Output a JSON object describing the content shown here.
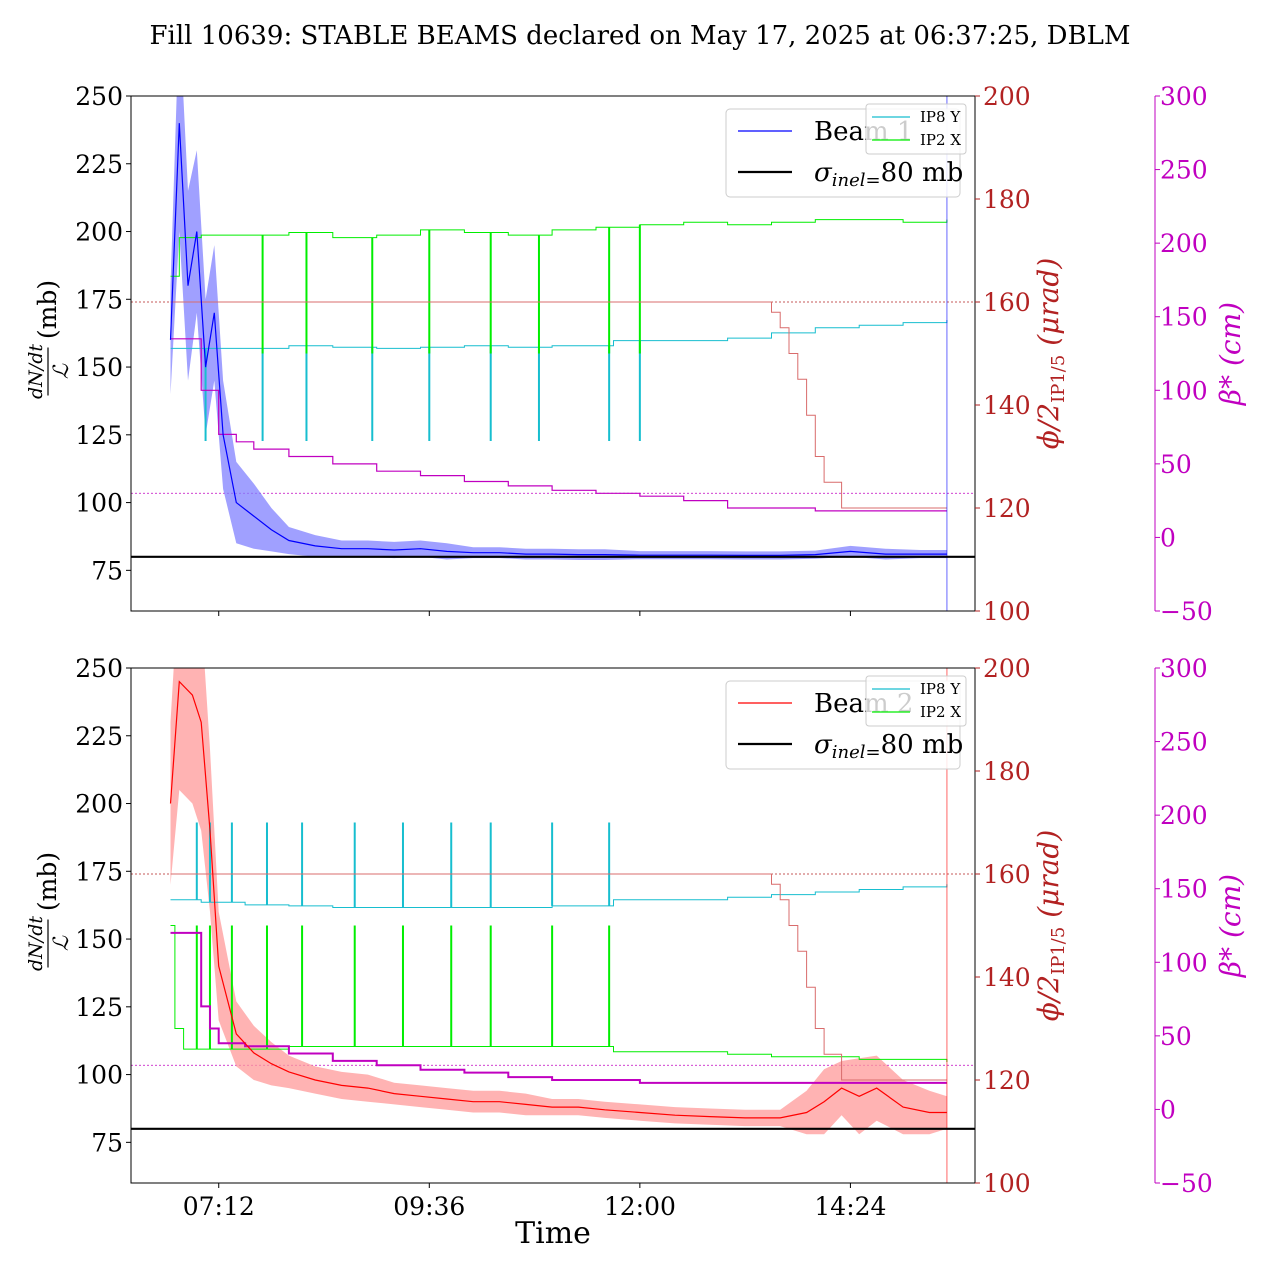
{
  "title": "Fill 10639: STABLE BEAMS declared on May 17, 2025 at 06:37:25, DBLM",
  "colors": {
    "beam1": "#0000ff",
    "beam1_band": "#8080ff",
    "beam2": "#ff0000",
    "beam2_band": "#ff9999",
    "ip8y": "#17becf",
    "ip2x": "#00ee00",
    "crossing": "#d96c6c",
    "crossing_axis": "#b22222",
    "beta": "#c000c0",
    "sigma": "#000000"
  },
  "chart_data": [
    {
      "panel": "top",
      "type": "line",
      "xlabel": "",
      "x_ticks": [
        "07:12",
        "09:36",
        "12:00",
        "14:24"
      ],
      "x_tick_hours": [
        7.2,
        9.6,
        12.0,
        14.4
      ],
      "xlim_hours": [
        6.2,
        15.82
      ],
      "y_left": {
        "label_num": "dN/dt",
        "label_den": "ℒ",
        "label_unit": "(mb)",
        "lim": [
          60,
          250
        ],
        "ticks": [
          75,
          100,
          125,
          150,
          175,
          200,
          225,
          250
        ]
      },
      "y_right1": {
        "label": "ϕ/2",
        "label_sub": "IP1/5",
        "label_unit": "(μrad)",
        "lim": [
          100,
          200
        ],
        "ticks": [
          100,
          120,
          140,
          160,
          180,
          200
        ]
      },
      "y_right2": {
        "label": "β*",
        "label_unit": "(cm)",
        "lim": [
          -50,
          300
        ],
        "ticks": [
          -50,
          0,
          50,
          100,
          150,
          200,
          250,
          300
        ]
      },
      "legend_main": [
        "Beam 1",
        "σinel=80 mb"
      ],
      "legend_main_placement": "top-right",
      "legend_ip": [
        "IP8 Y",
        "IP2 X"
      ],
      "legend_ip_placement": "top-right",
      "sigma_inel_mb": 80,
      "series": [
        {
          "name": "Beam 1",
          "axis": "left",
          "x": [
            6.65,
            6.75,
            6.85,
            6.95,
            7.05,
            7.15,
            7.25,
            7.4,
            7.6,
            7.8,
            8.0,
            8.3,
            8.6,
            8.9,
            9.2,
            9.5,
            9.8,
            10.1,
            10.4,
            10.7,
            11.0,
            11.3,
            11.6,
            12.0,
            12.4,
            12.8,
            13.2,
            13.6,
            14.0,
            14.4,
            14.8,
            15.2,
            15.5
          ],
          "values": [
            160,
            240,
            180,
            200,
            150,
            170,
            125,
            100,
            95,
            90,
            86,
            84,
            83,
            83,
            82.5,
            83,
            82,
            81.5,
            81.5,
            81,
            81,
            80.8,
            80.8,
            80.6,
            80.6,
            80.6,
            80.5,
            80.5,
            80.8,
            82,
            81,
            81,
            81
          ],
          "band_width": [
            20,
            40,
            35,
            30,
            25,
            25,
            20,
            15,
            12,
            8,
            5,
            4,
            3,
            3,
            3,
            3,
            3,
            2,
            2,
            2,
            2,
            2,
            2,
            1.5,
            1.5,
            1.5,
            1.5,
            1.5,
            1.5,
            2,
            2,
            1.5,
            1.5
          ]
        },
        {
          "name": "IP8 Y",
          "axis": "right1",
          "x": [
            6.65,
            7.5,
            8.0,
            8.5,
            9.0,
            9.5,
            10.0,
            10.5,
            11.0,
            11.5,
            11.7,
            12.5,
            13.0,
            13.5,
            14.0,
            14.5,
            15.0,
            15.5
          ],
          "values": [
            151,
            151,
            151.5,
            151.2,
            151,
            151.2,
            151.5,
            151.2,
            151.5,
            151.5,
            152.5,
            152.5,
            153,
            154,
            155,
            155.5,
            156,
            156.5
          ],
          "spikes_x": [
            7.05,
            7.7,
            8.2,
            8.95,
            9.6,
            10.3,
            10.85,
            11.65,
            12.0
          ],
          "spikes_to": 133
        },
        {
          "name": "IP2 X",
          "axis": "right1",
          "x": [
            6.65,
            6.75,
            7.0,
            7.5,
            8.0,
            8.5,
            9.0,
            9.5,
            10.0,
            10.5,
            11.0,
            11.5,
            12.0,
            12.5,
            13.0,
            13.5,
            14.0,
            14.5,
            15.0,
            15.5
          ],
          "values": [
            165,
            172.5,
            173,
            173,
            173.5,
            172.5,
            173,
            174,
            173.5,
            173,
            174,
            174.5,
            175,
            175.5,
            175,
            175.5,
            176,
            176,
            175.5,
            176
          ],
          "spikes_x": [
            7.7,
            8.2,
            8.95,
            9.6,
            10.3,
            10.85,
            11.65,
            12.0
          ],
          "spikes_to": 150
        },
        {
          "name": "crossing angle",
          "axis": "right1",
          "x": [
            6.65,
            13.4,
            13.5,
            13.6,
            13.7,
            13.8,
            13.9,
            14.0,
            14.1,
            14.3,
            15.5
          ],
          "values": [
            160,
            160,
            158,
            155,
            150,
            145,
            138,
            130,
            125,
            120,
            120
          ]
        },
        {
          "name": "beta*",
          "axis": "right2",
          "x": [
            6.65,
            7.0,
            7.2,
            7.4,
            7.6,
            8.0,
            8.5,
            9.0,
            9.5,
            10.0,
            10.5,
            11.0,
            11.5,
            12.0,
            12.5,
            13.0,
            14.0,
            15.5
          ],
          "values": [
            135,
            100,
            70,
            65,
            60,
            55,
            50,
            45,
            42,
            38,
            35,
            32,
            30,
            28,
            25,
            20,
            18,
            18
          ]
        }
      ],
      "ref_lines": [
        {
          "axis": "right1",
          "value": 160
        },
        {
          "axis": "right2",
          "value": 30
        }
      ]
    },
    {
      "panel": "bottom",
      "type": "line",
      "xlabel": "Time",
      "x_ticks": [
        "07:12",
        "09:36",
        "12:00",
        "14:24"
      ],
      "x_tick_hours": [
        7.2,
        9.6,
        12.0,
        14.4
      ],
      "xlim_hours": [
        6.2,
        15.82
      ],
      "y_left": {
        "label_num": "dN/dt",
        "label_den": "ℒ",
        "label_unit": "(mb)",
        "lim": [
          60,
          250
        ],
        "ticks": [
          75,
          100,
          125,
          150,
          175,
          200,
          225,
          250
        ]
      },
      "y_right1": {
        "label": "ϕ/2",
        "label_sub": "IP1/5",
        "label_unit": "(μrad)",
        "lim": [
          100,
          200
        ],
        "ticks": [
          100,
          120,
          140,
          160,
          180,
          200
        ]
      },
      "y_right2": {
        "label": "β*",
        "label_unit": "(cm)",
        "lim": [
          -50,
          300
        ],
        "ticks": [
          -50,
          0,
          50,
          100,
          150,
          200,
          250,
          300
        ]
      },
      "legend_main": [
        "Beam 2",
        "σinel=80 mb"
      ],
      "legend_main_placement": "top-right",
      "legend_ip": [
        "IP8 Y",
        "IP2 X"
      ],
      "legend_ip_placement": "top-right",
      "sigma_inel_mb": 80,
      "series": [
        {
          "name": "Beam 2",
          "axis": "left",
          "x": [
            6.65,
            6.75,
            6.9,
            7.0,
            7.1,
            7.2,
            7.4,
            7.6,
            7.8,
            8.0,
            8.3,
            8.6,
            8.9,
            9.2,
            9.5,
            9.8,
            10.1,
            10.4,
            10.7,
            11.0,
            11.3,
            11.6,
            12.0,
            12.4,
            12.8,
            13.2,
            13.6,
            13.9,
            14.1,
            14.3,
            14.5,
            14.7,
            15.0,
            15.3,
            15.5
          ],
          "values": [
            200,
            245,
            240,
            230,
            190,
            140,
            115,
            108,
            104,
            101,
            98,
            96,
            95,
            93,
            92,
            91,
            90,
            90,
            89,
            88,
            88,
            87,
            86,
            85,
            84.5,
            84,
            84,
            86,
            90,
            95,
            92,
            95,
            88,
            86,
            86
          ],
          "band_width": [
            30,
            40,
            40,
            40,
            30,
            20,
            12,
            10,
            8,
            6,
            5,
            5,
            5,
            4,
            4,
            4,
            4,
            4,
            4,
            3,
            3,
            3,
            3,
            3,
            3,
            3,
            3,
            8,
            12,
            10,
            14,
            12,
            10,
            8,
            6
          ]
        },
        {
          "name": "IP8 Y",
          "axis": "right1",
          "x": [
            6.65,
            7.0,
            7.5,
            8.0,
            8.5,
            9.0,
            9.5,
            10.0,
            10.5,
            11.0,
            11.5,
            11.7,
            12.5,
            13.0,
            13.5,
            14.0,
            14.5,
            15.0,
            15.5
          ],
          "values": [
            155,
            154.5,
            154,
            153.8,
            153.5,
            153.5,
            153.5,
            153.5,
            153.5,
            153.8,
            153.8,
            155,
            155,
            155.5,
            156,
            156.5,
            157,
            157.5,
            158
          ],
          "spikes_x": [
            6.95,
            7.1,
            7.35,
            7.75,
            8.15,
            8.75,
            9.3,
            9.85,
            10.3,
            11.0,
            11.65
          ],
          "spikes_to": 170
        },
        {
          "name": "IP2 X",
          "axis": "right1",
          "x": [
            6.65,
            6.7,
            6.8,
            7.0,
            7.5,
            8.0,
            8.5,
            9.0,
            9.5,
            10.0,
            10.5,
            11.0,
            11.5,
            11.7,
            12.5,
            13.0,
            13.5,
            14.0,
            14.5,
            15.0,
            15.5
          ],
          "values": [
            150,
            130,
            126,
            126,
            126,
            126.5,
            126.5,
            126.5,
            126.5,
            126.5,
            126.5,
            126.5,
            126.5,
            125.5,
            125.5,
            125,
            124.5,
            124.5,
            124,
            124,
            123.5
          ],
          "spikes_x": [
            6.95,
            7.1,
            7.35,
            7.75,
            8.15,
            8.75,
            9.3,
            9.85,
            10.3,
            11.0,
            11.65
          ],
          "spikes_to": 150
        },
        {
          "name": "crossing angle",
          "axis": "right1",
          "x": [
            6.65,
            13.4,
            13.5,
            13.6,
            13.7,
            13.8,
            13.9,
            14.0,
            14.1,
            14.3,
            15.5
          ],
          "values": [
            160,
            160,
            158,
            155,
            150,
            145,
            138,
            130,
            125,
            120,
            120
          ]
        },
        {
          "name": "beta*",
          "axis": "right2",
          "x": [
            6.65,
            6.9,
            7.0,
            7.1,
            7.2,
            7.5,
            8.0,
            8.5,
            9.0,
            9.5,
            10.0,
            10.5,
            11.0,
            11.5,
            12.0,
            13.0,
            14.0,
            15.5
          ],
          "values": [
            120,
            120,
            70,
            55,
            45,
            43,
            38,
            33,
            30,
            27,
            25,
            22,
            20,
            20,
            18,
            18,
            18,
            18
          ]
        }
      ],
      "ref_lines": [
        {
          "axis": "right1",
          "value": 160
        },
        {
          "axis": "right2",
          "value": 30
        }
      ]
    }
  ]
}
